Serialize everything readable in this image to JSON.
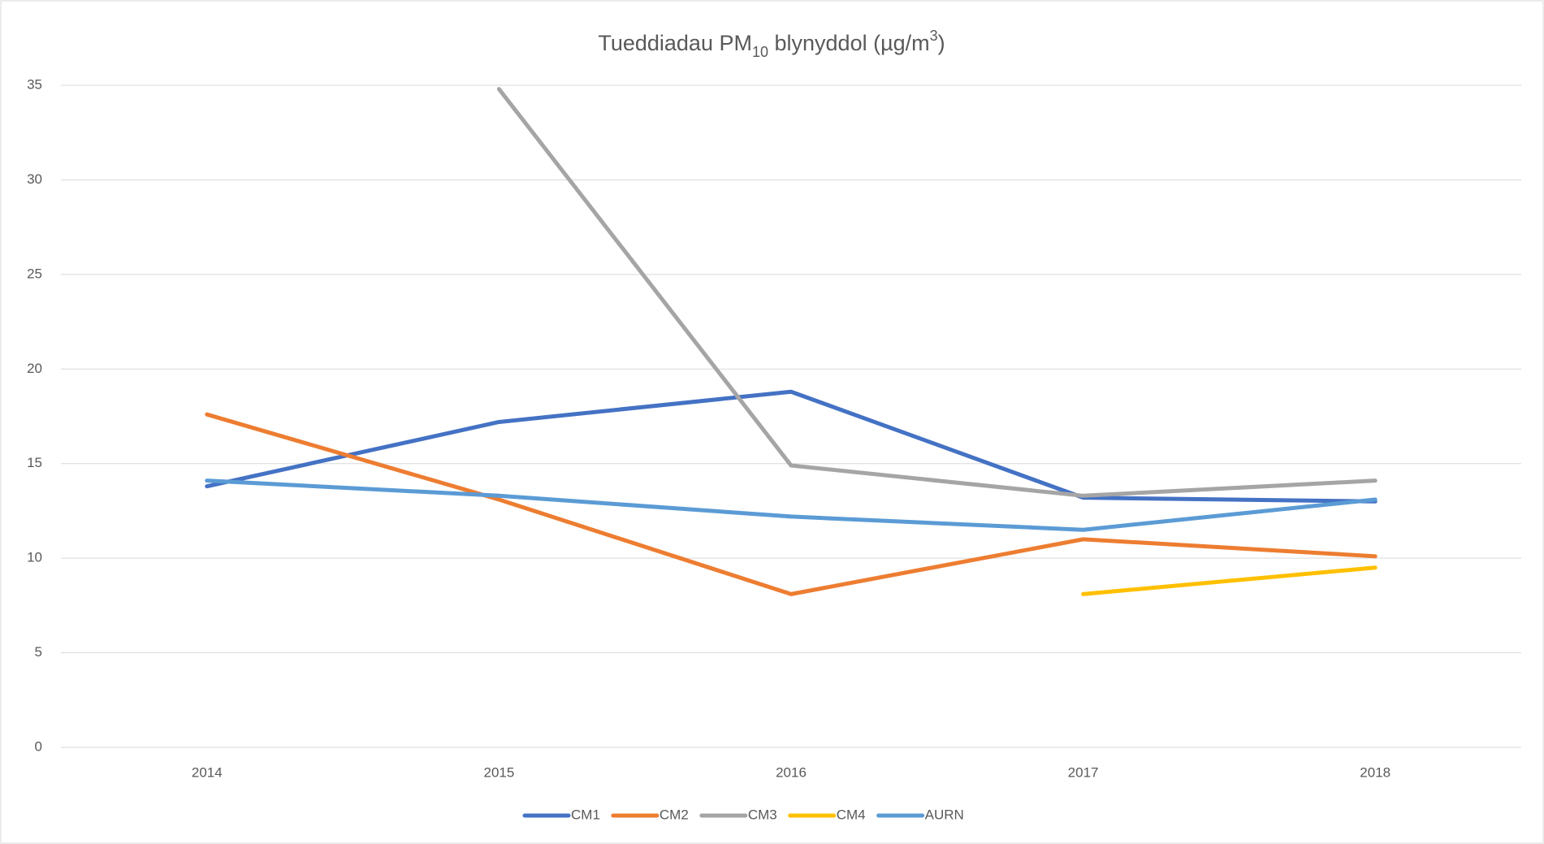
{
  "chart_data": {
    "type": "line",
    "title": [
      "Tueddiadau PM",
      "10",
      " blynyddol (µg/m",
      "3",
      ")"
    ],
    "categories": [
      "2014",
      "2015",
      "2016",
      "2017",
      "2018"
    ],
    "series": [
      {
        "name": "CM1",
        "color": "#4472c4",
        "values": [
          13.8,
          17.2,
          18.8,
          13.2,
          13.0
        ]
      },
      {
        "name": "CM2",
        "color": "#ed7d31",
        "values": [
          17.6,
          13.1,
          8.1,
          11.0,
          10.1
        ]
      },
      {
        "name": "CM3",
        "color": "#a5a5a5",
        "values": [
          null,
          34.8,
          14.9,
          13.3,
          14.1
        ]
      },
      {
        "name": "CM4",
        "color": "#ffc000",
        "values": [
          null,
          null,
          null,
          8.1,
          9.5
        ]
      },
      {
        "name": "AURN",
        "color": "#5b9bd5",
        "values": [
          14.1,
          13.3,
          12.2,
          11.5,
          13.1
        ]
      }
    ],
    "ylim": [
      0,
      35
    ],
    "yticks": [
      0,
      5,
      10,
      15,
      20,
      25,
      30,
      35
    ],
    "grid": true,
    "legend": "bottom"
  }
}
